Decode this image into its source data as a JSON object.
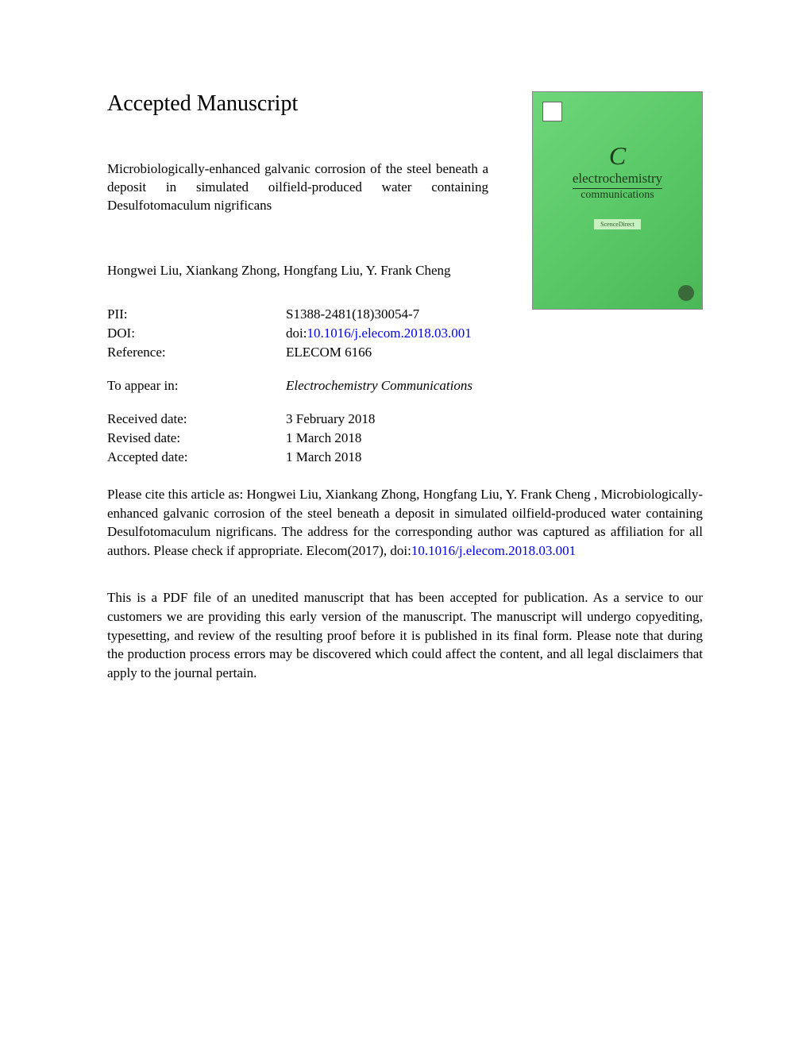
{
  "page_title": "Accepted Manuscript",
  "article_title": "Microbiologically-enhanced galvanic corrosion of the steel beneath a deposit in simulated oilfield-produced water containing Desulfotomaculum nigrificans",
  "authors": "Hongwei Liu, Xiankang Zhong, Hongfang Liu, Y. Frank Cheng",
  "journal_cover": {
    "letter": "C",
    "title": "electrochemistry",
    "subtitle": "communications",
    "mid_text": "ScenceDirect",
    "colors": {
      "background_gradient_start": "#6dd67a",
      "background_gradient_end": "#4ab856",
      "text_color": "#1a3a1a"
    }
  },
  "metadata": {
    "pii": {
      "label": "PII:",
      "value": "S1388-2481(18)30054-7"
    },
    "doi": {
      "label": "DOI:",
      "prefix": "doi:",
      "link": "10.1016/j.elecom.2018.03.001"
    },
    "reference": {
      "label": "Reference:",
      "value": "ELECOM 6166"
    },
    "to_appear": {
      "label": "To appear in:",
      "value": "Electrochemistry Communications"
    },
    "received": {
      "label": "Received date:",
      "value": "3 February 2018"
    },
    "revised": {
      "label": "Revised date:",
      "value": "1 March 2018"
    },
    "accepted": {
      "label": "Accepted date:",
      "value": "1 March 2018"
    }
  },
  "citation": {
    "text_before": "Please cite this article as: Hongwei Liu, Xiankang Zhong, Hongfang Liu, Y. Frank Cheng , Microbiologically-enhanced galvanic corrosion of the steel beneath a deposit in simulated oilfield-produced water containing Desulfotomaculum nigrificans. The address for the corresponding author was captured as affiliation for all authors. Please check if appropriate. Elecom(2017), doi:",
    "link": "10.1016/j.elecom.2018.03.001"
  },
  "disclaimer": "This is a PDF file of an unedited manuscript that has been accepted for publication. As a service to our customers we are providing this early version of the manuscript. The manuscript will undergo copyediting, typesetting, and review of the resulting proof before it is published in its final form. Please note that during the production process errors may be discovered which could affect the content, and all legal disclaimers that apply to the journal pertain.",
  "colors": {
    "link_color": "#0000ee",
    "text_color": "#000000",
    "background": "#ffffff"
  }
}
